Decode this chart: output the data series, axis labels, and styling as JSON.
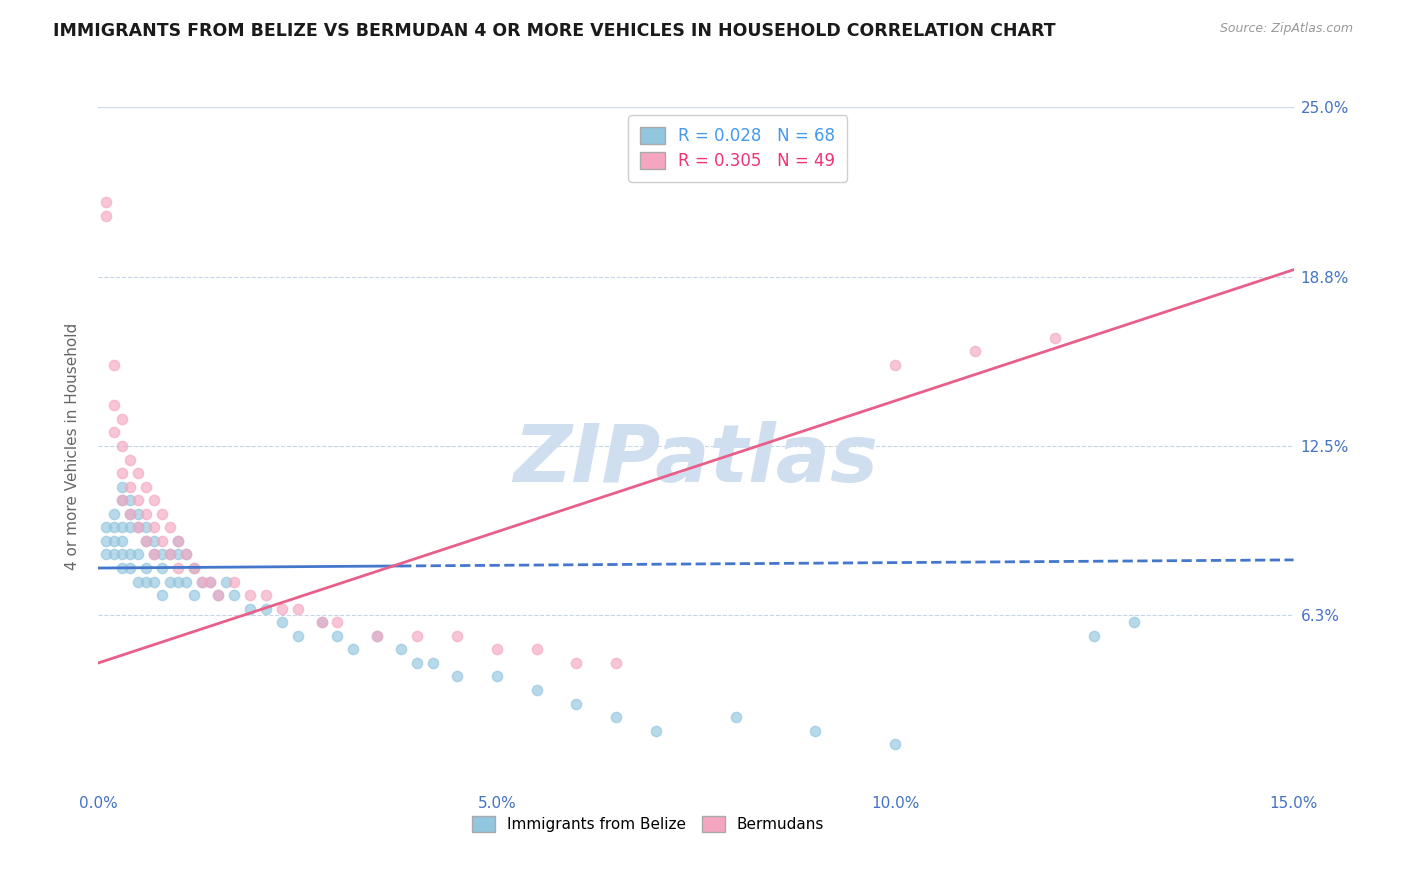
{
  "title": "IMMIGRANTS FROM BELIZE VS BERMUDAN 4 OR MORE VEHICLES IN HOUSEHOLD CORRELATION CHART",
  "source": "Source: ZipAtlas.com",
  "ylabel": "4 or more Vehicles in Household",
  "r_belize": 0.028,
  "n_belize": 68,
  "r_bermuda": 0.305,
  "n_bermuda": 49,
  "xlim": [
    0.0,
    0.15
  ],
  "ylim": [
    0.0,
    0.25
  ],
  "xticks": [
    0.0,
    0.05,
    0.1,
    0.15
  ],
  "xtick_labels": [
    "0.0%",
    "5.0%",
    "10.0%",
    "15.0%"
  ],
  "yticks_right": [
    0.0625,
    0.125,
    0.1875,
    0.25
  ],
  "ytick_labels_right": [
    "6.3%",
    "12.5%",
    "18.8%",
    "25.0%"
  ],
  "color_belize": "#92c5de",
  "color_bermuda": "#f4a6c0",
  "trend_color_belize": "#4477cc",
  "trend_color_bermuda": "#e8608a",
  "watermark": "ZIPatlas",
  "watermark_color": "#d0dff0",
  "background_color": "#ffffff",
  "trend_belize_y0": 0.08,
  "trend_belize_y1": 0.083,
  "trend_bermuda_y0": 0.045,
  "trend_bermuda_y1": 0.19,
  "belize_x": [
    0.001,
    0.001,
    0.001,
    0.002,
    0.002,
    0.002,
    0.002,
    0.003,
    0.003,
    0.003,
    0.003,
    0.003,
    0.003,
    0.004,
    0.004,
    0.004,
    0.004,
    0.004,
    0.005,
    0.005,
    0.005,
    0.005,
    0.006,
    0.006,
    0.006,
    0.006,
    0.007,
    0.007,
    0.007,
    0.008,
    0.008,
    0.008,
    0.009,
    0.009,
    0.01,
    0.01,
    0.01,
    0.011,
    0.011,
    0.012,
    0.012,
    0.013,
    0.014,
    0.015,
    0.016,
    0.017,
    0.019,
    0.021,
    0.023,
    0.025,
    0.028,
    0.03,
    0.032,
    0.035,
    0.038,
    0.04,
    0.042,
    0.045,
    0.05,
    0.055,
    0.06,
    0.065,
    0.07,
    0.08,
    0.09,
    0.1,
    0.125,
    0.13
  ],
  "belize_y": [
    0.095,
    0.09,
    0.085,
    0.1,
    0.095,
    0.09,
    0.085,
    0.11,
    0.105,
    0.095,
    0.09,
    0.085,
    0.08,
    0.105,
    0.1,
    0.095,
    0.085,
    0.08,
    0.1,
    0.095,
    0.085,
    0.075,
    0.095,
    0.09,
    0.08,
    0.075,
    0.09,
    0.085,
    0.075,
    0.085,
    0.08,
    0.07,
    0.085,
    0.075,
    0.09,
    0.085,
    0.075,
    0.085,
    0.075,
    0.08,
    0.07,
    0.075,
    0.075,
    0.07,
    0.075,
    0.07,
    0.065,
    0.065,
    0.06,
    0.055,
    0.06,
    0.055,
    0.05,
    0.055,
    0.05,
    0.045,
    0.045,
    0.04,
    0.04,
    0.035,
    0.03,
    0.025,
    0.02,
    0.025,
    0.02,
    0.015,
    0.055,
    0.06
  ],
  "bermuda_x": [
    0.001,
    0.001,
    0.002,
    0.002,
    0.002,
    0.003,
    0.003,
    0.003,
    0.003,
    0.004,
    0.004,
    0.004,
    0.005,
    0.005,
    0.005,
    0.006,
    0.006,
    0.006,
    0.007,
    0.007,
    0.007,
    0.008,
    0.008,
    0.009,
    0.009,
    0.01,
    0.01,
    0.011,
    0.012,
    0.013,
    0.014,
    0.015,
    0.017,
    0.019,
    0.021,
    0.023,
    0.025,
    0.028,
    0.03,
    0.035,
    0.04,
    0.045,
    0.05,
    0.055,
    0.06,
    0.065,
    0.1,
    0.11,
    0.12
  ],
  "bermuda_y": [
    0.215,
    0.21,
    0.155,
    0.14,
    0.13,
    0.135,
    0.125,
    0.115,
    0.105,
    0.12,
    0.11,
    0.1,
    0.115,
    0.105,
    0.095,
    0.11,
    0.1,
    0.09,
    0.105,
    0.095,
    0.085,
    0.1,
    0.09,
    0.095,
    0.085,
    0.09,
    0.08,
    0.085,
    0.08,
    0.075,
    0.075,
    0.07,
    0.075,
    0.07,
    0.07,
    0.065,
    0.065,
    0.06,
    0.06,
    0.055,
    0.055,
    0.055,
    0.05,
    0.05,
    0.045,
    0.045,
    0.155,
    0.16,
    0.165
  ]
}
